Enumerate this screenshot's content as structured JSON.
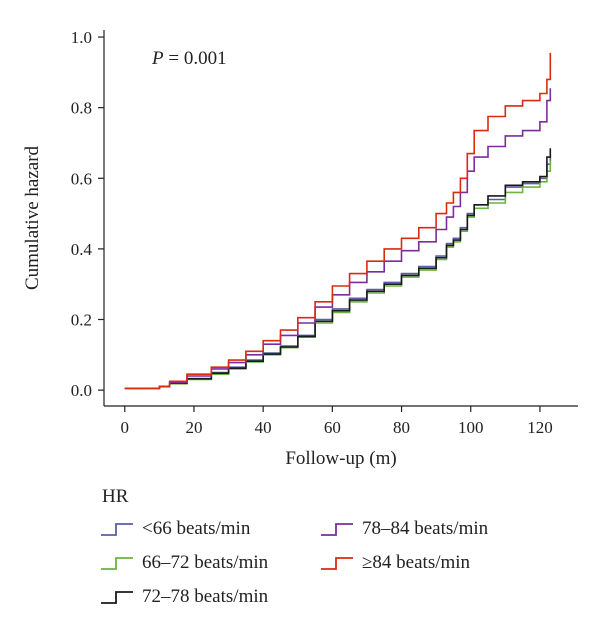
{
  "chart_data": {
    "type": "line",
    "step": true,
    "xlabel": "Follow-up (m)",
    "ylabel": "Cumulative hazard",
    "xlim": [
      -6,
      131
    ],
    "ylim": [
      -0.045,
      1.02
    ],
    "xticks": [
      0,
      20,
      40,
      60,
      80,
      100,
      120
    ],
    "yticks": [
      0.0,
      0.2,
      0.4,
      0.6,
      0.8,
      1.0
    ],
    "ytick_labels": [
      "0.0",
      "0.2",
      "0.4",
      "0.6",
      "0.8",
      "1.0"
    ],
    "grid": false,
    "annotation": {
      "italic": "P",
      "text": " = 0.001"
    },
    "legend": {
      "title": "HR",
      "placement": "bottom"
    },
    "series": [
      {
        "name": "<66 beats/min",
        "color": "#5b5fa8",
        "points": [
          [
            0,
            0.005
          ],
          [
            10,
            0.01
          ],
          [
            13,
            0.02
          ],
          [
            18,
            0.033
          ],
          [
            25,
            0.05
          ],
          [
            30,
            0.065
          ],
          [
            35,
            0.085
          ],
          [
            40,
            0.105
          ],
          [
            45,
            0.125
          ],
          [
            50,
            0.155
          ],
          [
            55,
            0.2
          ],
          [
            60,
            0.23
          ],
          [
            65,
            0.26
          ],
          [
            70,
            0.285
          ],
          [
            75,
            0.305
          ],
          [
            80,
            0.33
          ],
          [
            85,
            0.35
          ],
          [
            90,
            0.38
          ],
          [
            93,
            0.415
          ],
          [
            95,
            0.43
          ],
          [
            97,
            0.46
          ],
          [
            99,
            0.5
          ],
          [
            101,
            0.525
          ],
          [
            105,
            0.54
          ],
          [
            110,
            0.575
          ],
          [
            115,
            0.585
          ],
          [
            120,
            0.6
          ],
          [
            122,
            0.64
          ],
          [
            123,
            0.665
          ]
        ]
      },
      {
        "name": "66–72 beats/min",
        "color": "#6cb33f",
        "points": [
          [
            0,
            0.005
          ],
          [
            10,
            0.01
          ],
          [
            13,
            0.018
          ],
          [
            18,
            0.03
          ],
          [
            25,
            0.045
          ],
          [
            30,
            0.06
          ],
          [
            35,
            0.08
          ],
          [
            40,
            0.1
          ],
          [
            45,
            0.12
          ],
          [
            50,
            0.15
          ],
          [
            55,
            0.19
          ],
          [
            60,
            0.22
          ],
          [
            65,
            0.25
          ],
          [
            70,
            0.275
          ],
          [
            75,
            0.295
          ],
          [
            80,
            0.32
          ],
          [
            85,
            0.34
          ],
          [
            90,
            0.37
          ],
          [
            93,
            0.405
          ],
          [
            95,
            0.42
          ],
          [
            97,
            0.45
          ],
          [
            99,
            0.49
          ],
          [
            101,
            0.515
          ],
          [
            105,
            0.53
          ],
          [
            110,
            0.56
          ],
          [
            115,
            0.575
          ],
          [
            120,
            0.59
          ],
          [
            122,
            0.62
          ],
          [
            123,
            0.65
          ]
        ]
      },
      {
        "name": "72–78 beats/min",
        "color": "#1a1a1a",
        "points": [
          [
            0,
            0.005
          ],
          [
            10,
            0.01
          ],
          [
            13,
            0.02
          ],
          [
            18,
            0.032
          ],
          [
            25,
            0.048
          ],
          [
            30,
            0.062
          ],
          [
            35,
            0.082
          ],
          [
            40,
            0.102
          ],
          [
            45,
            0.122
          ],
          [
            50,
            0.152
          ],
          [
            55,
            0.195
          ],
          [
            60,
            0.225
          ],
          [
            65,
            0.255
          ],
          [
            70,
            0.28
          ],
          [
            75,
            0.3
          ],
          [
            80,
            0.325
          ],
          [
            85,
            0.345
          ],
          [
            90,
            0.375
          ],
          [
            93,
            0.41
          ],
          [
            95,
            0.425
          ],
          [
            97,
            0.455
          ],
          [
            99,
            0.495
          ],
          [
            101,
            0.525
          ],
          [
            105,
            0.55
          ],
          [
            110,
            0.58
          ],
          [
            115,
            0.59
          ],
          [
            120,
            0.605
          ],
          [
            122,
            0.66
          ],
          [
            123,
            0.685
          ]
        ]
      },
      {
        "name": "78–84 beats/min",
        "color": "#7b2d9e",
        "points": [
          [
            0,
            0.005
          ],
          [
            10,
            0.01
          ],
          [
            13,
            0.022
          ],
          [
            18,
            0.04
          ],
          [
            25,
            0.06
          ],
          [
            30,
            0.078
          ],
          [
            35,
            0.1
          ],
          [
            40,
            0.13
          ],
          [
            45,
            0.155
          ],
          [
            50,
            0.19
          ],
          [
            55,
            0.235
          ],
          [
            60,
            0.27
          ],
          [
            65,
            0.305
          ],
          [
            70,
            0.335
          ],
          [
            75,
            0.365
          ],
          [
            80,
            0.395
          ],
          [
            85,
            0.42
          ],
          [
            90,
            0.455
          ],
          [
            93,
            0.49
          ],
          [
            95,
            0.52
          ],
          [
            97,
            0.56
          ],
          [
            99,
            0.62
          ],
          [
            101,
            0.66
          ],
          [
            105,
            0.69
          ],
          [
            110,
            0.72
          ],
          [
            115,
            0.735
          ],
          [
            120,
            0.76
          ],
          [
            122,
            0.82
          ],
          [
            123,
            0.855
          ]
        ]
      },
      {
        "name": "≥84 beats/min",
        "color": "#d92b0e",
        "points": [
          [
            0,
            0.005
          ],
          [
            10,
            0.01
          ],
          [
            13,
            0.025
          ],
          [
            18,
            0.045
          ],
          [
            25,
            0.065
          ],
          [
            30,
            0.085
          ],
          [
            35,
            0.11
          ],
          [
            40,
            0.14
          ],
          [
            45,
            0.17
          ],
          [
            50,
            0.205
          ],
          [
            55,
            0.25
          ],
          [
            60,
            0.295
          ],
          [
            65,
            0.33
          ],
          [
            70,
            0.365
          ],
          [
            75,
            0.4
          ],
          [
            80,
            0.43
          ],
          [
            85,
            0.46
          ],
          [
            90,
            0.5
          ],
          [
            93,
            0.53
          ],
          [
            95,
            0.56
          ],
          [
            97,
            0.6
          ],
          [
            99,
            0.67
          ],
          [
            101,
            0.735
          ],
          [
            105,
            0.775
          ],
          [
            110,
            0.805
          ],
          [
            115,
            0.82
          ],
          [
            120,
            0.84
          ],
          [
            122,
            0.88
          ],
          [
            123,
            0.955
          ]
        ]
      }
    ]
  }
}
